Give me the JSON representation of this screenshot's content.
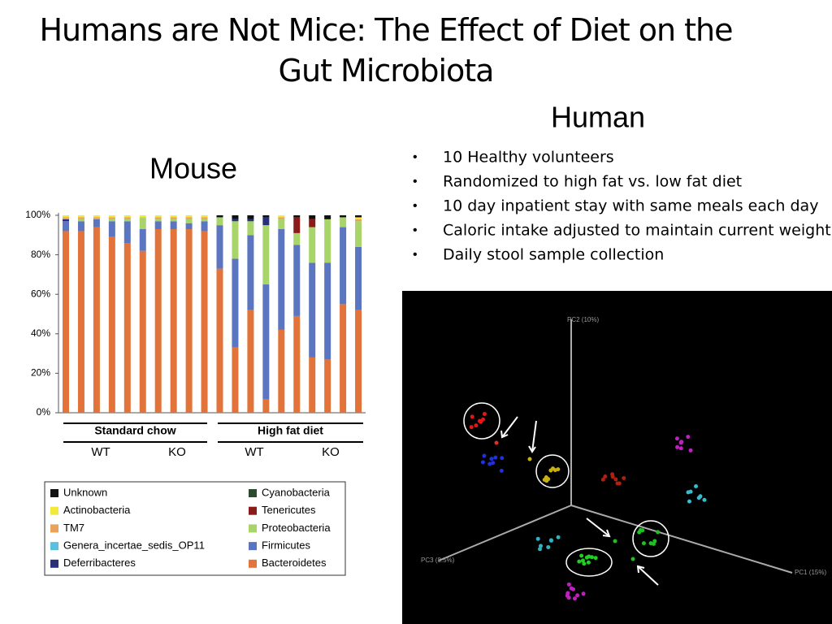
{
  "title": "Humans are Not Mice: The Effect of Diet on the Gut Microbiota",
  "mouse_heading": "Mouse",
  "human_heading": "Human",
  "bullets": [
    "10 Healthy volunteers",
    "Randomized to high fat vs. low fat diet",
    "10 day inpatient stay with same meals each day",
    "Caloric intake adjusted to maintain current weight",
    "Daily stool sample collection"
  ],
  "pcoa": {
    "axis_labels": [
      "PC2 (10%)",
      "PC1 (15%)",
      "PC3 (8.5%)"
    ]
  },
  "chart_data": {
    "type": "stacked_bar",
    "categories": [
      null,
      null,
      null,
      null,
      null,
      null,
      null,
      null,
      null,
      null,
      null,
      null,
      null,
      null,
      null,
      null,
      null,
      null,
      null,
      null
    ],
    "groups": [
      "Standard chow",
      "High fat diet"
    ],
    "subgroups": [
      "WT",
      "KO",
      "WT",
      "KO"
    ],
    "ylim": [
      0,
      100
    ],
    "yticks": [
      {
        "value": 0,
        "label": "0%"
      },
      {
        "value": 20,
        "label": "20%"
      },
      {
        "value": 40,
        "label": "40%"
      },
      {
        "value": 60,
        "label": "60%"
      },
      {
        "value": 80,
        "label": "80%"
      },
      {
        "value": 100,
        "label": "100%"
      }
    ],
    "series": [
      {
        "name": "Bacteroidetes",
        "color": "#e2733a",
        "values": [
          92,
          92,
          94,
          89,
          86,
          82,
          93,
          93,
          93,
          92,
          73,
          33,
          52,
          7,
          42,
          49,
          28,
          27,
          55,
          52
        ]
      },
      {
        "name": "Firmicutes",
        "color": "#5b75c0",
        "values": [
          5,
          5,
          4,
          8,
          11,
          11,
          4,
          4,
          3,
          5,
          22,
          45,
          38,
          58,
          51,
          36,
          48,
          49,
          39,
          32
        ]
      },
      {
        "name": "Proteobacteria",
        "color": "#a8d46a",
        "values": [
          0,
          1,
          0,
          1,
          1,
          6,
          1,
          1,
          2,
          1,
          4,
          19,
          7,
          30,
          5,
          6,
          18,
          22,
          5,
          13
        ]
      },
      {
        "name": "Tenericutes",
        "color": "#8b1a1a",
        "values": [
          0,
          0,
          0,
          0,
          0,
          0,
          0,
          0,
          0,
          0,
          0,
          0,
          0,
          0,
          0,
          8,
          4,
          0,
          0,
          0
        ]
      },
      {
        "name": "Cyanobacteria",
        "color": "#2c4a2c",
        "values": [
          0,
          0,
          0,
          0,
          0,
          0,
          0,
          0,
          0,
          0,
          0,
          0,
          0,
          0,
          0,
          0,
          0,
          0,
          0,
          0
        ]
      },
      {
        "name": "Deferribacteres",
        "color": "#2a2f7a",
        "values": [
          1,
          0,
          0,
          0,
          0,
          0,
          0,
          0,
          0,
          0,
          0,
          1,
          1,
          4,
          0,
          0,
          0,
          0,
          0,
          0
        ]
      },
      {
        "name": "Genera_incertae_sedis_OP11",
        "color": "#5bc0e0",
        "values": [
          0,
          0,
          0,
          0,
          0,
          0,
          0,
          0,
          0,
          0,
          0,
          0,
          0,
          0,
          0,
          0,
          0,
          0,
          0,
          0
        ]
      },
      {
        "name": "TM7",
        "color": "#e8a35b",
        "values": [
          1,
          1,
          1,
          1,
          1,
          0,
          1,
          1,
          1,
          1,
          0,
          0,
          0,
          0,
          1,
          0,
          0,
          0,
          0,
          1
        ]
      },
      {
        "name": "Actinobacteria",
        "color": "#f4e93a",
        "values": [
          1,
          1,
          1,
          1,
          1,
          1,
          1,
          1,
          1,
          1,
          0,
          0,
          0,
          0,
          1,
          0,
          0,
          0,
          0,
          1
        ]
      },
      {
        "name": "Unknown",
        "color": "#111111",
        "values": [
          0,
          0,
          0,
          0,
          0,
          0,
          0,
          0,
          0,
          0,
          1,
          2,
          2,
          1,
          0,
          1,
          2,
          2,
          1,
          1
        ]
      }
    ]
  }
}
